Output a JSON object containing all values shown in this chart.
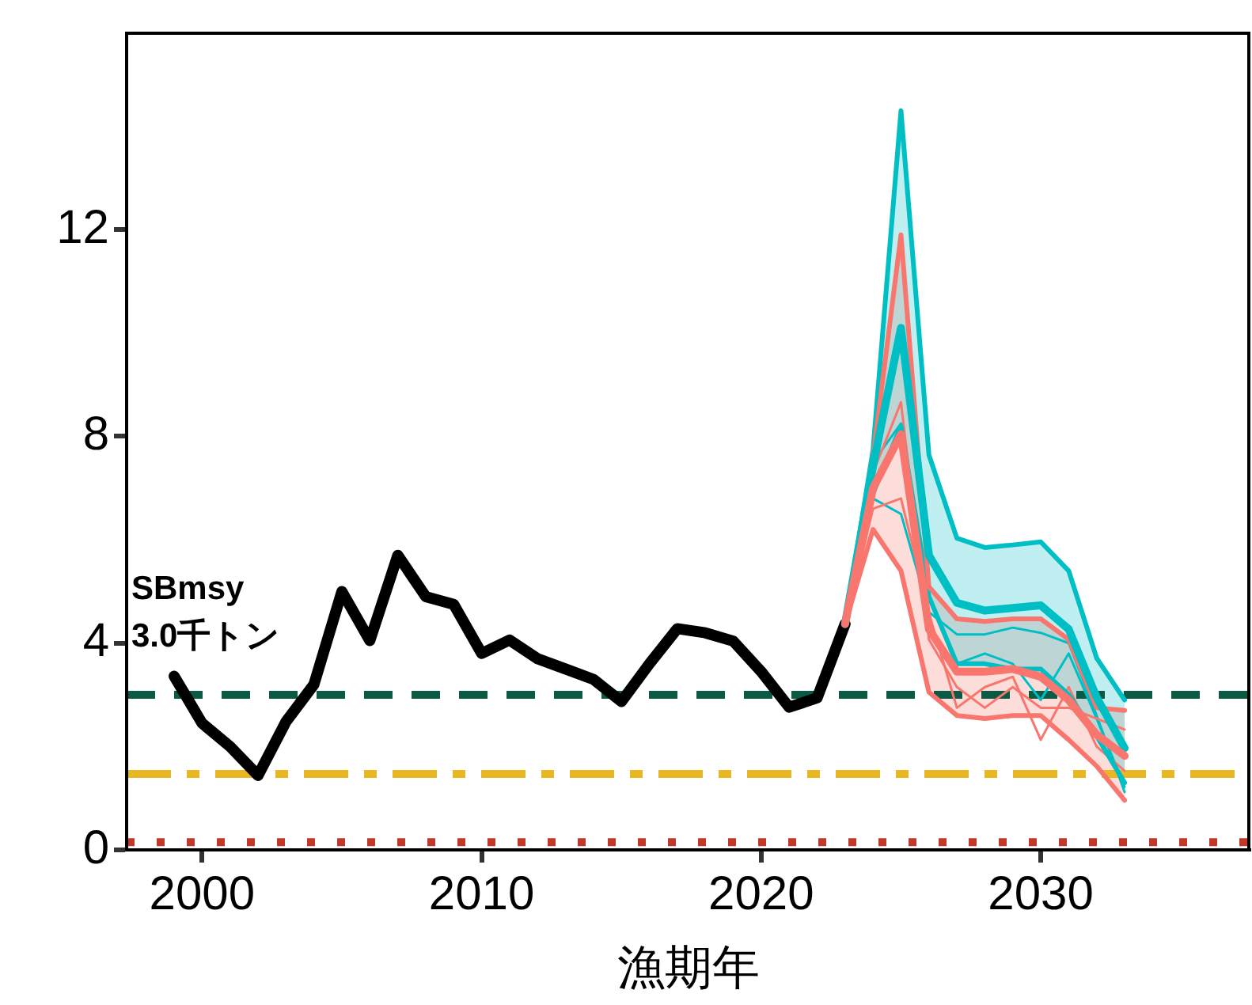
{
  "chart_data": {
    "type": "line",
    "xlabel": "漁期年",
    "xlim": [
      1997.3,
      2037.5
    ],
    "xticks": [
      2000,
      2010,
      2020,
      2030
    ],
    "ylim": [
      0,
      15.8
    ],
    "yticks": [
      0,
      4,
      8,
      12
    ],
    "grid": false,
    "legend": false,
    "marker": "none",
    "series": [
      {
        "color": "#000000",
        "x": [
          1999,
          2000,
          2001,
          2002,
          2003,
          2004,
          2005,
          2006,
          2007,
          2008,
          2009,
          2010,
          2011,
          2012,
          2013,
          2014,
          2015,
          2016,
          2017,
          2018,
          2019,
          2020,
          2021,
          2022,
          2023
        ],
        "values": [
          3.36,
          2.45,
          2.0,
          1.44,
          2.48,
          3.2,
          5.0,
          4.05,
          5.7,
          4.9,
          4.75,
          3.8,
          4.06,
          3.7,
          3.5,
          3.3,
          2.87,
          3.6,
          4.28,
          4.2,
          4.04,
          3.45,
          2.76,
          2.94,
          4.37
        ]
      },
      {
        "color": "#f8766d",
        "x": [
          2023,
          2024,
          2025,
          2026,
          2027,
          2028,
          2029,
          2030,
          2031,
          2032,
          2033
        ],
        "values": [
          4.37,
          7.0,
          8.04,
          4.27,
          3.45,
          3.45,
          3.5,
          3.35,
          2.9,
          2.23,
          1.82
        ],
        "lower": [
          4.37,
          6.2,
          5.4,
          3.05,
          2.6,
          2.54,
          2.6,
          2.6,
          2.13,
          1.62,
          0.96
        ],
        "upper": [
          4.37,
          7.6,
          11.9,
          5.09,
          4.47,
          4.42,
          4.47,
          4.47,
          4.07,
          2.75,
          2.7
        ]
      },
      {
        "color": "#00bfc4",
        "x": [
          2023,
          2024,
          2025,
          2026,
          2027,
          2028,
          2029,
          2030,
          2031,
          2032,
          2033
        ],
        "values": [
          4.37,
          7.43,
          10.1,
          5.7,
          4.78,
          4.63,
          4.68,
          4.73,
          4.27,
          2.95,
          1.97
        ],
        "lower": [
          4.37,
          6.9,
          8.2,
          4.9,
          3.6,
          3.6,
          3.5,
          3.5,
          3.0,
          2.2,
          1.3
        ],
        "upper": [
          4.37,
          7.74,
          14.3,
          7.64,
          6.03,
          5.85,
          5.9,
          5.96,
          5.4,
          3.71,
          2.9
        ]
      },
      {
        "color": "#f8766d",
        "x": [
          2023,
          2024,
          2025,
          2026,
          2027,
          2028,
          2029,
          2030,
          2031,
          2032,
          2033
        ],
        "values": [
          4.37,
          6.2,
          5.4,
          3.05,
          2.6,
          2.54,
          2.6,
          2.6,
          2.13,
          1.62,
          0.96
        ]
      },
      {
        "color": "#f8766d",
        "x": [
          2023,
          2024,
          2025,
          2026,
          2027,
          2028,
          2029,
          2030,
          2031,
          2032,
          2033
        ],
        "values": [
          4.37,
          7.6,
          11.9,
          5.09,
          4.47,
          4.42,
          4.47,
          4.47,
          4.07,
          2.75,
          2.7
        ]
      },
      {
        "color": "#00bfc4",
        "x": [
          2023,
          2024,
          2025,
          2026,
          2027,
          2028,
          2029,
          2030,
          2031,
          2032,
          2033
        ],
        "values": [
          4.37,
          6.9,
          8.2,
          4.9,
          3.6,
          3.6,
          3.5,
          3.5,
          3.0,
          2.2,
          1.3
        ]
      },
      {
        "color": "#00bfc4",
        "x": [
          2023,
          2024,
          2025,
          2026,
          2027,
          2028,
          2029,
          2030,
          2031,
          2032,
          2033
        ],
        "values": [
          4.37,
          7.74,
          14.3,
          7.64,
          6.03,
          5.85,
          5.9,
          5.96,
          5.4,
          3.71,
          2.9
        ]
      },
      {
        "color": "#f8766d",
        "x": [
          2023,
          2024,
          2025,
          2026,
          2027,
          2028,
          2029,
          2030,
          2031,
          2032,
          2033
        ],
        "values": [
          4.37,
          6.6,
          6.8,
          4.58,
          2.75,
          3.15,
          3.35,
          2.13,
          3.15,
          2.0,
          1.53
        ]
      },
      {
        "color": "#f8766d",
        "x": [
          2023,
          2024,
          2025,
          2026,
          2027,
          2028,
          2029,
          2030,
          2031,
          2032,
          2033
        ],
        "values": [
          4.37,
          7.3,
          8.66,
          4.07,
          3.15,
          2.75,
          3.15,
          2.75,
          2.75,
          2.54,
          2.33
        ]
      },
      {
        "color": "#00bfc4",
        "x": [
          2023,
          2024,
          2025,
          2026,
          2027,
          2028,
          2029,
          2030,
          2031,
          2032,
          2033
        ],
        "values": [
          4.37,
          7.5,
          8.25,
          4.9,
          3.6,
          3.8,
          3.6,
          2.9,
          3.8,
          2.54,
          1.22
        ]
      },
      {
        "color": "#00bfc4",
        "x": [
          2023,
          2024,
          2025,
          2026,
          2027,
          2028,
          2029,
          2030,
          2031,
          2032,
          2033
        ],
        "values": [
          4.37,
          6.8,
          6.5,
          4.6,
          4.17,
          4.17,
          4.3,
          4.2,
          4.0,
          2.6,
          1.12
        ]
      }
    ],
    "ref_lines": [
      {
        "axis": "y",
        "value": 3.0,
        "label": "SBmsy\n3.0千トン",
        "color": "#0b5a45",
        "line_style": "dashed"
      },
      {
        "axis": "y",
        "value": 1.47,
        "color": "#e8b722",
        "line_style": "dashdot"
      },
      {
        "axis": "y",
        "value": 0.15,
        "color": "#c0392b",
        "line_style": "dotted"
      }
    ]
  }
}
